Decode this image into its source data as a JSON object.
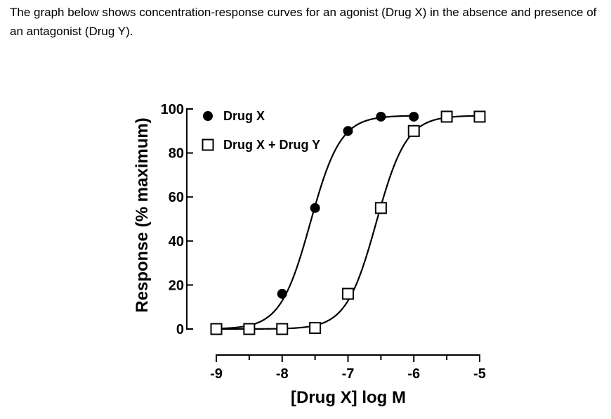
{
  "question": {
    "text": "The graph below shows concentration-response curves for an agonist (Drug X) in the absence and presence of an antagonist (Drug Y)."
  },
  "chart_data": {
    "type": "scatter",
    "xlabel": "[Drug X] log M",
    "ylabel": "Response (% maximum)",
    "xlim": [
      -9,
      -5
    ],
    "ylim": [
      0,
      100
    ],
    "x_ticks": [
      -9,
      -8,
      -7,
      -6,
      -5
    ],
    "x_tick_labels": [
      "-9",
      "-8",
      "-7",
      "-6",
      "-5"
    ],
    "y_ticks": [
      0,
      20,
      40,
      60,
      80,
      100
    ],
    "y_tick_labels": [
      "0",
      "20",
      "40",
      "60",
      "80",
      "100"
    ],
    "grid": false,
    "legend_position": "top-left",
    "series": [
      {
        "name": "Drug X",
        "marker": "filled-circle",
        "color": "#000000",
        "x": [
          -9,
          -8.5,
          -8,
          -7.5,
          -7,
          -6.5,
          -6
        ],
        "y": [
          0,
          0.5,
          16,
          55,
          90,
          96.5,
          96.5
        ],
        "curve": {
          "bottom": 0,
          "top": 97,
          "log_ec50": -7.57,
          "hill_slope": 1.9
        }
      },
      {
        "name": "Drug X + Drug Y",
        "marker": "open-square",
        "color": "#000000",
        "x": [
          -9,
          -8.5,
          -8,
          -7.5,
          -7,
          -6.5,
          -6,
          -5.5,
          -5
        ],
        "y": [
          0,
          0,
          0,
          0.5,
          16,
          55,
          90,
          96.5,
          96.5
        ],
        "curve": {
          "bottom": 0,
          "top": 97,
          "log_ec50": -6.57,
          "hill_slope": 1.9
        }
      }
    ]
  }
}
